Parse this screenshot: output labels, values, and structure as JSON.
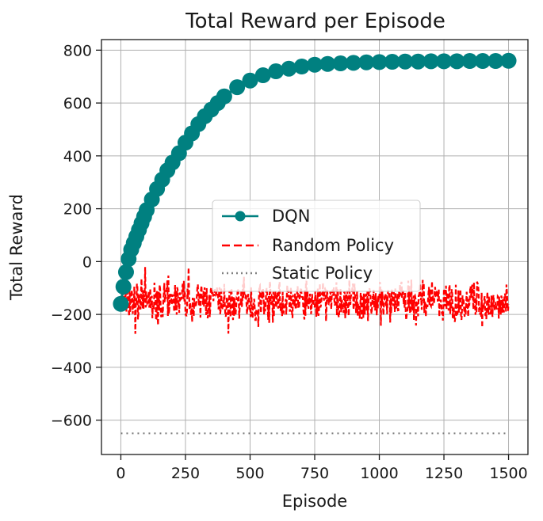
{
  "chart_data": {
    "type": "line",
    "title": "Total Reward per Episode",
    "xlabel": "Episode",
    "ylabel": "Total Reward",
    "xlim": [
      -75,
      1575
    ],
    "ylim": [
      -730,
      840
    ],
    "xticks": [
      0,
      250,
      500,
      750,
      1000,
      1250,
      1500
    ],
    "yticks": [
      -600,
      -400,
      -200,
      0,
      200,
      400,
      600,
      800
    ],
    "xtick_labels": [
      "0",
      "250",
      "500",
      "750",
      "1000",
      "1250",
      "1500"
    ],
    "ytick_labels": [
      "−600",
      "−400",
      "−200",
      "0",
      "200",
      "400",
      "600",
      "800"
    ],
    "grid": true,
    "legend_position": "center-right",
    "series": [
      {
        "name": "DQN",
        "style": "solid line with circle markers",
        "color": "#008080",
        "x": [
          0,
          10,
          20,
          30,
          40,
          50,
          60,
          70,
          80,
          90,
          100,
          120,
          140,
          160,
          180,
          200,
          225,
          250,
          275,
          300,
          325,
          350,
          375,
          400,
          450,
          500,
          550,
          600,
          650,
          700,
          750,
          800,
          850,
          900,
          950,
          1000,
          1050,
          1100,
          1150,
          1200,
          1250,
          1300,
          1350,
          1400,
          1450,
          1500
        ],
        "y": [
          -160,
          -95,
          -40,
          10,
          45,
          70,
          95,
          120,
          145,
          170,
          195,
          235,
          275,
          310,
          345,
          375,
          410,
          450,
          485,
          520,
          550,
          575,
          600,
          625,
          660,
          685,
          705,
          720,
          730,
          738,
          745,
          748,
          750,
          752,
          754,
          755,
          756,
          757,
          757,
          758,
          758,
          758,
          759,
          759,
          759,
          760
        ]
      },
      {
        "name": "Random Policy",
        "style": "dashed",
        "color": "#ff0000",
        "x_range": [
          0,
          1500
        ],
        "mean": -150,
        "min": -290,
        "max": -20
      },
      {
        "name": "Static Policy",
        "style": "dotted",
        "color": "#808080",
        "x": [
          0,
          1500
        ],
        "y": [
          -650,
          -650
        ]
      }
    ]
  }
}
